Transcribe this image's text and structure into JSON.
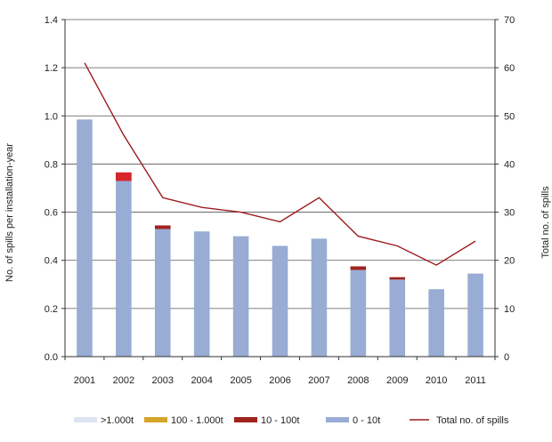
{
  "chart_data": {
    "type": "bar",
    "categories": [
      "2001",
      "2002",
      "2003",
      "2004",
      "2005",
      "2006",
      "2007",
      "2008",
      "2009",
      "2010",
      "2011"
    ],
    "stack_order": [
      "0-10t",
      "10-100t",
      "100-1000t",
      ">1000t"
    ],
    "series": [
      {
        "key": ">1000t",
        "name": ">1.000t",
        "type": "bar",
        "axis": "left",
        "color": "#dfe4f3",
        "values": [
          0,
          0,
          0,
          0,
          0,
          0,
          0,
          0,
          0,
          0,
          0
        ]
      },
      {
        "key": "100-1000t",
        "name": "100 - 1.000t",
        "type": "bar",
        "axis": "left",
        "color": "#d4a62a",
        "values": [
          0,
          0,
          0,
          0,
          0,
          0,
          0,
          0,
          0,
          0,
          0
        ]
      },
      {
        "key": "10-100t",
        "name": "10 - 100t",
        "type": "bar",
        "axis": "left",
        "color": "#a0241e",
        "values": [
          0,
          0.035,
          0.015,
          0,
          0,
          0,
          0,
          0.015,
          0.01,
          0,
          0
        ]
      },
      {
        "key": "0-10t",
        "name": "0 - 10t",
        "type": "bar",
        "axis": "left",
        "color": "#98acd4",
        "values": [
          0.985,
          0.73,
          0.53,
          0.52,
          0.5,
          0.46,
          0.49,
          0.36,
          0.32,
          0.28,
          0.345
        ]
      },
      {
        "key": "total",
        "name": "Total no. of spills",
        "type": "line",
        "axis": "right",
        "color": "#9c1c1c",
        "values": [
          61,
          46,
          33,
          31,
          30,
          28,
          33,
          25,
          23,
          19,
          24
        ]
      }
    ],
    "extra_marks": [
      {
        "category": "2002",
        "bottom": 0.73,
        "top": 0.765,
        "color": "#d7262b"
      }
    ],
    "y_left": {
      "label": "No. of spills per installation-year",
      "ylim": [
        0,
        1.4
      ],
      "ticks": [
        "0.0",
        "0.2",
        "0.4",
        "0.6",
        "0.8",
        "1.0",
        "1.2",
        "1.4"
      ]
    },
    "y_right": {
      "label": "Total no. of spills",
      "ylim": [
        0,
        70
      ],
      "ticks": [
        "0",
        "10",
        "20",
        "30",
        "40",
        "50",
        "60",
        "70"
      ]
    },
    "grid": "horizontal",
    "legend": "bottom"
  }
}
